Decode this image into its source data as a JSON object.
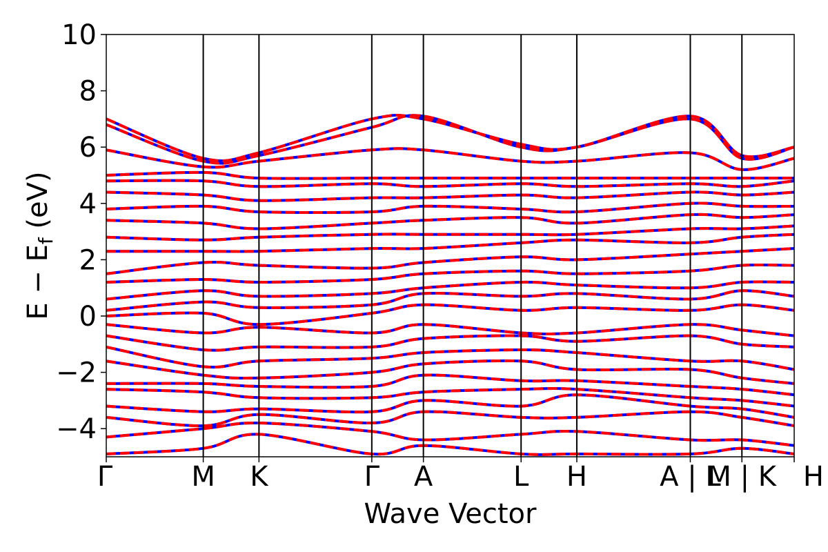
{
  "chart_data": {
    "type": "line",
    "title": "",
    "xlabel": "Wave Vector",
    "ylabel_parts": {
      "main": "E − E",
      "sub": "f",
      "unit": " (eV)"
    },
    "ylim": [
      -5,
      10
    ],
    "yticks": [
      -4,
      -2,
      0,
      2,
      4,
      6,
      8,
      10
    ],
    "ytick_labels": [
      "−4",
      "−2",
      "0",
      "2",
      "4",
      "6",
      "8",
      "10"
    ],
    "grid": false,
    "legend": "none",
    "high_symmetry_labels": [
      "Γ",
      "M",
      "K",
      "Γ",
      "A",
      "L",
      "H",
      "A | L",
      "M | K",
      "H"
    ],
    "k_range": [
      0,
      1
    ],
    "k_path": [
      0.0,
      0.141,
      0.222,
      0.386,
      0.461,
      0.603,
      0.684,
      0.849,
      0.924,
      1.0
    ],
    "series": [
      {
        "name": "",
        "color": "#0000ff",
        "style": "solid"
      },
      {
        "name": "",
        "color": "#ff0000",
        "style": "dashed"
      }
    ],
    "bands": [
      [
        -4.9,
        -4.7,
        -4.2,
        -4.9,
        -4.6,
        -4.9,
        -4.9,
        -4.9,
        -4.7,
        -4.9
      ],
      [
        -4.3,
        -4.0,
        -3.8,
        -4.1,
        -4.4,
        -4.2,
        -4.1,
        -4.4,
        -4.4,
        -4.6
      ],
      [
        -3.6,
        -3.9,
        -3.5,
        -3.8,
        -3.4,
        -3.6,
        -3.6,
        -3.4,
        -3.6,
        -3.9
      ],
      [
        -3.2,
        -3.4,
        -3.3,
        -3.4,
        -3.0,
        -3.2,
        -2.8,
        -3.2,
        -3.3,
        -3.6
      ],
      [
        -2.6,
        -2.7,
        -2.9,
        -2.9,
        -2.7,
        -2.6,
        -2.6,
        -2.9,
        -3.0,
        -3.2
      ],
      [
        -2.4,
        -2.4,
        -2.5,
        -2.5,
        -2.1,
        -2.3,
        -2.3,
        -2.5,
        -2.6,
        -2.8
      ],
      [
        -1.6,
        -2.1,
        -2.2,
        -2.0,
        -1.7,
        -1.6,
        -1.9,
        -1.9,
        -2.2,
        -2.4
      ],
      [
        -1.1,
        -1.8,
        -1.6,
        -1.5,
        -1.3,
        -1.2,
        -1.3,
        -1.6,
        -1.6,
        -1.9
      ],
      [
        -0.7,
        -1.2,
        -1.1,
        -1.1,
        -0.8,
        -0.7,
        -0.9,
        -0.7,
        -1.0,
        -1.1
      ],
      [
        -0.3,
        -0.6,
        -0.4,
        -0.6,
        -0.3,
        -0.6,
        -0.6,
        -0.3,
        -0.5,
        -0.7
      ],
      [
        0.0,
        0.1,
        -0.3,
        0.1,
        0.4,
        0.2,
        0.3,
        0.2,
        0.4,
        0.2
      ],
      [
        0.2,
        0.5,
        0.3,
        0.4,
        0.8,
        0.7,
        0.8,
        0.6,
        0.9,
        0.7
      ],
      [
        0.6,
        0.9,
        0.7,
        0.8,
        1.0,
        1.2,
        1.1,
        1.0,
        1.2,
        1.2
      ],
      [
        1.2,
        1.3,
        1.2,
        1.3,
        1.5,
        1.6,
        1.5,
        1.6,
        1.8,
        1.8
      ],
      [
        1.5,
        1.9,
        1.8,
        1.7,
        1.9,
        2.1,
        2.0,
        2.2,
        2.3,
        2.4
      ],
      [
        2.3,
        2.3,
        2.3,
        2.4,
        2.4,
        2.6,
        2.7,
        2.6,
        2.8,
        2.9
      ],
      [
        2.8,
        2.7,
        2.8,
        2.9,
        2.9,
        2.9,
        2.9,
        3.1,
        3.1,
        3.2
      ],
      [
        3.4,
        3.3,
        3.1,
        3.3,
        3.4,
        3.5,
        3.3,
        3.6,
        3.5,
        3.6
      ],
      [
        3.8,
        3.9,
        3.7,
        3.7,
        3.9,
        3.8,
        3.7,
        4.0,
        3.9,
        3.9
      ],
      [
        4.4,
        4.3,
        4.1,
        4.2,
        4.2,
        4.3,
        4.2,
        4.4,
        4.3,
        4.4
      ],
      [
        4.8,
        4.8,
        4.6,
        4.7,
        4.6,
        4.7,
        4.6,
        4.7,
        4.6,
        4.8
      ],
      [
        5.0,
        5.1,
        4.9,
        4.9,
        4.9,
        4.9,
        4.9,
        4.9,
        4.9,
        4.9
      ],
      [
        5.9,
        5.3,
        5.5,
        5.9,
        5.9,
        5.5,
        5.5,
        5.8,
        5.2,
        5.6
      ],
      [
        6.8,
        5.5,
        5.7,
        6.7,
        7.1,
        6.0,
        6.0,
        7.0,
        5.6,
        6.0
      ],
      [
        7.0,
        5.6,
        5.8,
        7.0,
        7.0,
        6.1,
        6.0,
        7.1,
        5.7,
        6.0
      ]
    ]
  }
}
